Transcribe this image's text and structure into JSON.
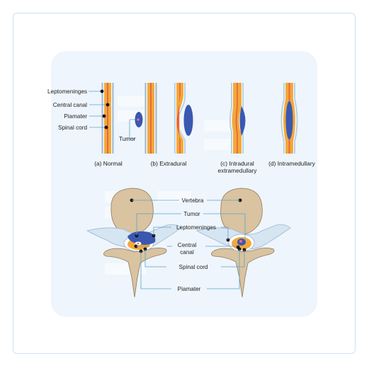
{
  "colors": {
    "panel": "#eef5fc",
    "bone": "#d9c3a0",
    "bone_edge": "#8f7b5e",
    "cord": "#f2a83b",
    "central_canal": "#e8643c",
    "meninges": "#b7d0e4",
    "tumor": "#3a58b0",
    "tumor_spot": "#f06a9a",
    "leader": "#5fa3c9"
  },
  "top_labels": {
    "leptomeninges": "Leptomeninges",
    "central_canal": "Central canal",
    "piamater": "Piamater",
    "spinal_cord": "Spinal cord",
    "tumor": "Tumor"
  },
  "captions": {
    "normal": "(a) Normal",
    "extradural": "(b) Extradural",
    "intradural_line1": "(c) Intradural",
    "intradural_line2": "extramedullary",
    "intramedullary": "(d) Intramedullary"
  },
  "bottom_labels": {
    "vertebra": "Vertebra",
    "tumor": "Tumor",
    "leptomeninges": "Leptomeninges",
    "central_line1": "Central",
    "central_line2": "canal",
    "spinal_cord": "Spinal cord",
    "piamater": "Piamater"
  }
}
